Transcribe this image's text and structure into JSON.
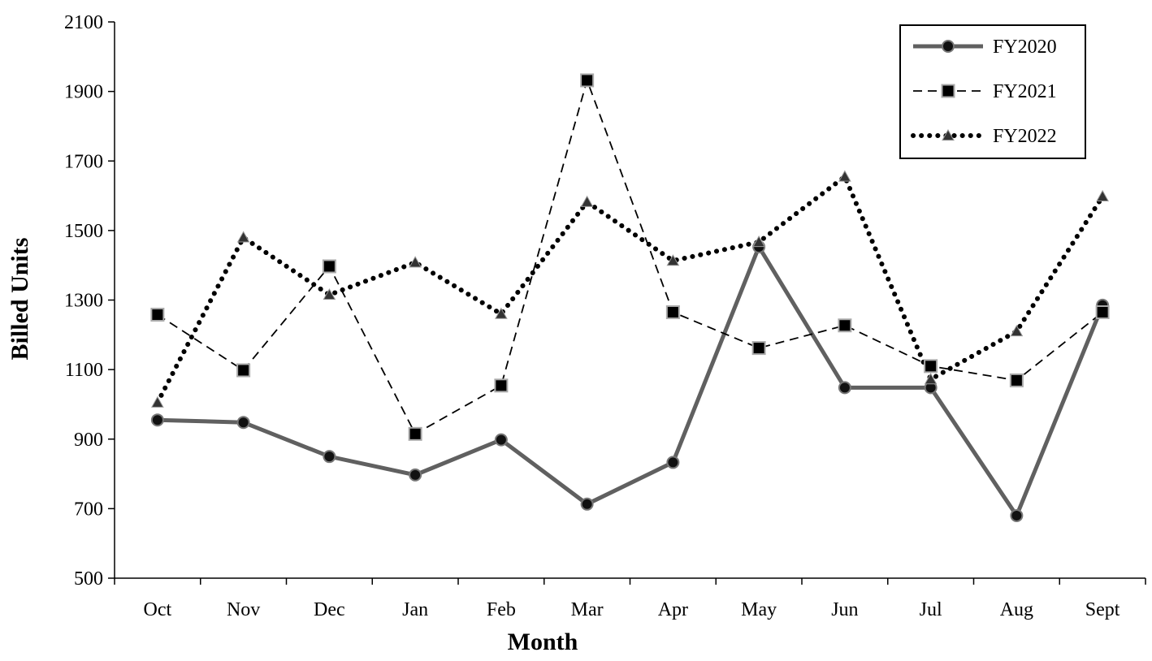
{
  "chart_data": {
    "type": "line",
    "title": "",
    "xlabel": "Month",
    "ylabel": "Billed Units",
    "categories": [
      "Oct",
      "Nov",
      "Dec",
      "Jan",
      "Feb",
      "Mar",
      "Apr",
      "May",
      "Jun",
      "Jul",
      "Aug",
      "Sept"
    ],
    "ylim": [
      500,
      2100
    ],
    "yticks": [
      "500",
      "700",
      "900",
      "1100",
      "1300",
      "1500",
      "1700",
      "1900",
      "2100"
    ],
    "grid": false,
    "legend_position": "top-right",
    "series": [
      {
        "name": "FY2020",
        "style": "solid",
        "marker": "circle",
        "color": "#606060",
        "values": [
          955,
          948,
          850,
          797,
          898,
          713,
          833,
          1453,
          1048,
          1048,
          680,
          1285
        ]
      },
      {
        "name": "FY2021",
        "style": "dashed",
        "marker": "square",
        "color": "#000000",
        "values": [
          1258,
          1098,
          1397,
          915,
          1054,
          1932,
          1265,
          1162,
          1227,
          1110,
          1069,
          1265
        ]
      },
      {
        "name": "FY2022",
        "style": "dotted",
        "marker": "triangle",
        "color": "#000000",
        "values": [
          1005,
          1480,
          1315,
          1408,
          1260,
          1582,
          1413,
          1467,
          1655,
          1072,
          1210,
          1598
        ]
      }
    ]
  }
}
